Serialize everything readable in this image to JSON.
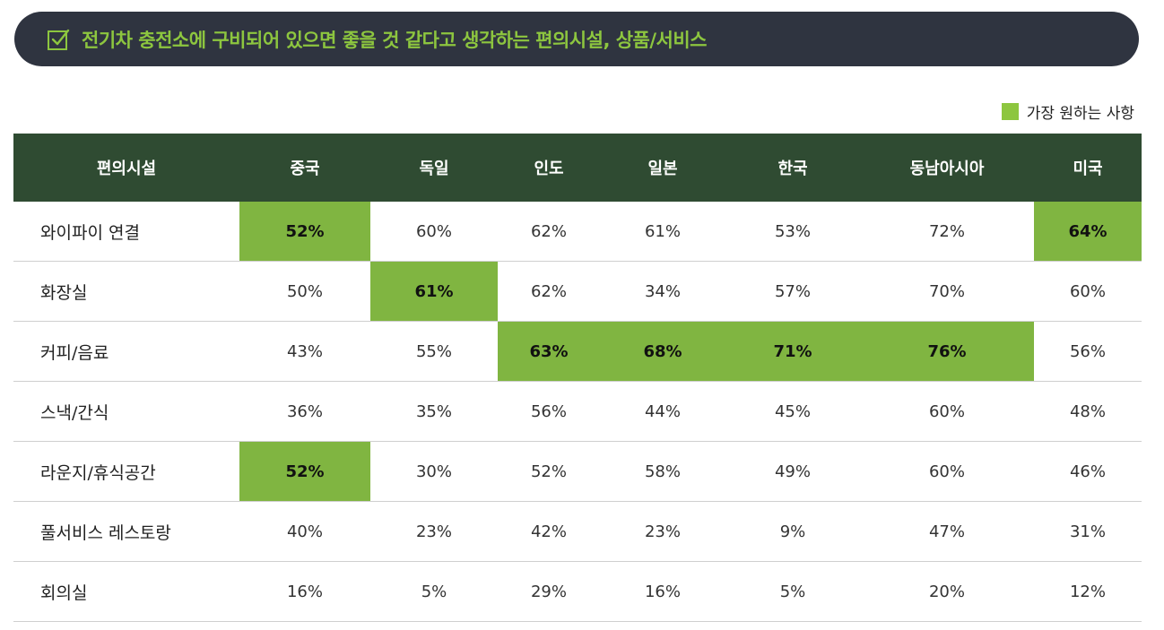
{
  "title": "전기차 충전소에 구비되어 있으면 좋을 것 같다고 생각하는 편의시설, 상품/서비스",
  "legend": {
    "label": "가장 원하는 사항",
    "color": "#8dc63f"
  },
  "colors": {
    "header_bg": "#2f4b32",
    "highlight": "#80b541",
    "title_bg": "#2f3440",
    "title_text": "#8dc63f"
  },
  "icons": {
    "title_icon": "checkbox-check-icon"
  },
  "chart_data": {
    "type": "table",
    "columns": [
      "편의시설",
      "중국",
      "독일",
      "인도",
      "일본",
      "한국",
      "동남아시아",
      "미국"
    ],
    "rows": [
      {
        "label": "와이파이 연결",
        "values": [
          "52%",
          "60%",
          "62%",
          "61%",
          "53%",
          "72%",
          "64%"
        ],
        "highlight": [
          true,
          false,
          false,
          false,
          false,
          false,
          true
        ]
      },
      {
        "label": "화장실",
        "values": [
          "50%",
          "61%",
          "62%",
          "34%",
          "57%",
          "70%",
          "60%"
        ],
        "highlight": [
          false,
          true,
          false,
          false,
          false,
          false,
          false
        ]
      },
      {
        "label": "커피/음료",
        "values": [
          "43%",
          "55%",
          "63%",
          "68%",
          "71%",
          "76%",
          "56%"
        ],
        "highlight": [
          false,
          false,
          true,
          true,
          true,
          true,
          false
        ]
      },
      {
        "label": "스낵/간식",
        "values": [
          "36%",
          "35%",
          "56%",
          "44%",
          "45%",
          "60%",
          "48%"
        ],
        "highlight": [
          false,
          false,
          false,
          false,
          false,
          false,
          false
        ]
      },
      {
        "label": "라운지/휴식공간",
        "values": [
          "52%",
          "30%",
          "52%",
          "58%",
          "49%",
          "60%",
          "46%"
        ],
        "highlight": [
          true,
          false,
          false,
          false,
          false,
          false,
          false
        ]
      },
      {
        "label": "풀서비스 레스토랑",
        "values": [
          "40%",
          "23%",
          "42%",
          "23%",
          "9%",
          "47%",
          "31%"
        ],
        "highlight": [
          false,
          false,
          false,
          false,
          false,
          false,
          false
        ]
      },
      {
        "label": "회의실",
        "values": [
          "16%",
          "5%",
          "29%",
          "16%",
          "5%",
          "20%",
          "12%"
        ],
        "highlight": [
          false,
          false,
          false,
          false,
          false,
          false,
          false
        ]
      }
    ]
  }
}
